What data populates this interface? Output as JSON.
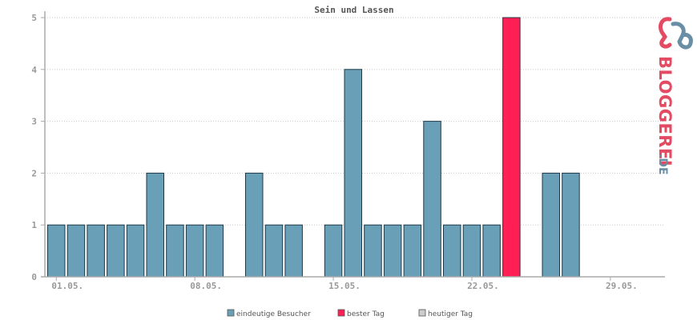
{
  "chart_data": {
    "type": "bar",
    "title": "Sein und Lassen",
    "xlabel": "",
    "ylabel": "",
    "ylim": [
      0,
      5
    ],
    "yticks": [
      "0",
      "1",
      "2",
      "3",
      "4",
      "5"
    ],
    "x_tick_labels": [
      "01.05.",
      "08.05.",
      "15.05.",
      "22.05.",
      "29.05."
    ],
    "days": [
      1,
      2,
      3,
      4,
      5,
      6,
      7,
      8,
      9,
      10,
      11,
      12,
      13,
      14,
      15,
      16,
      17,
      18,
      19,
      20,
      21,
      22,
      23,
      24,
      25,
      26,
      27,
      28,
      29,
      30,
      31
    ],
    "series": [
      {
        "name": "eindeutige Besucher",
        "values": [
          1,
          1,
          1,
          1,
          1,
          2,
          1,
          1,
          1,
          0,
          2,
          1,
          1,
          0,
          1,
          4,
          1,
          1,
          1,
          3,
          1,
          1,
          1,
          5,
          0,
          2,
          2,
          0,
          0,
          0,
          0
        ]
      }
    ],
    "best_day_index": 23,
    "grid": true,
    "legend_position": "bottom-center",
    "legend": [
      {
        "label": "eindeutige Besucher",
        "color": "#6a9fb8"
      },
      {
        "label": "bester Tag",
        "color": "#ff1f55"
      },
      {
        "label": "heutiger Tag",
        "color": "#cccccc"
      }
    ],
    "colors": {
      "bar": "#6a9fb8",
      "best": "#ff1f55",
      "today": "#cccccc",
      "outline": "#1e3a48"
    }
  },
  "logo": {
    "text": "BLOGGEREI",
    "suffix": ".DE"
  }
}
